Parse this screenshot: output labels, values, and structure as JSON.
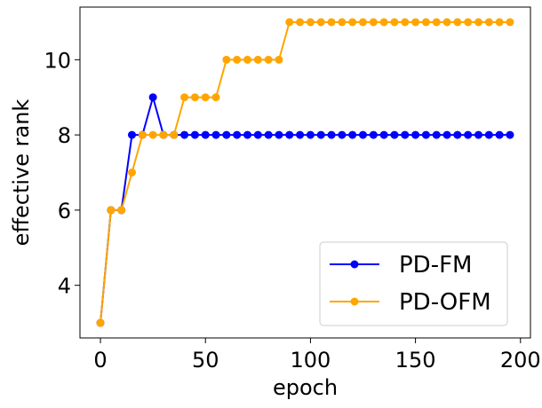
{
  "chart_data": {
    "type": "line",
    "title": "",
    "xlabel": "epoch",
    "ylabel": "effective rank",
    "xlim": [
      -9.75,
      204.75
    ],
    "ylim": [
      2.6,
      11.4
    ],
    "xticks": [
      0,
      50,
      100,
      150,
      200
    ],
    "yticks": [
      4,
      6,
      8,
      10
    ],
    "xtick_labels": [
      "0",
      "50",
      "100",
      "150",
      "200"
    ],
    "ytick_labels": [
      "4",
      "6",
      "8",
      "10"
    ],
    "grid": false,
    "legend_position": "lower-right",
    "x": [
      0,
      5,
      10,
      15,
      20,
      25,
      30,
      35,
      40,
      45,
      50,
      55,
      60,
      65,
      70,
      75,
      80,
      85,
      90,
      95,
      100,
      105,
      110,
      115,
      120,
      125,
      130,
      135,
      140,
      145,
      150,
      155,
      160,
      165,
      170,
      175,
      180,
      185,
      190,
      195
    ],
    "series": [
      {
        "name": "PD-FM",
        "color": "#0000ff",
        "marker": "circle",
        "values": [
          3,
          6,
          6,
          8,
          8,
          9,
          8,
          8,
          8,
          8,
          8,
          8,
          8,
          8,
          8,
          8,
          8,
          8,
          8,
          8,
          8,
          8,
          8,
          8,
          8,
          8,
          8,
          8,
          8,
          8,
          8,
          8,
          8,
          8,
          8,
          8,
          8,
          8,
          8,
          8
        ]
      },
      {
        "name": "PD-OFM",
        "color": "#ffa500",
        "marker": "circle",
        "values": [
          3,
          6,
          6,
          7,
          8,
          8,
          8,
          8,
          9,
          9,
          9,
          9,
          10,
          10,
          10,
          10,
          10,
          10,
          11,
          11,
          11,
          11,
          11,
          11,
          11,
          11,
          11,
          11,
          11,
          11,
          11,
          11,
          11,
          11,
          11,
          11,
          11,
          11,
          11,
          11
        ]
      }
    ]
  }
}
